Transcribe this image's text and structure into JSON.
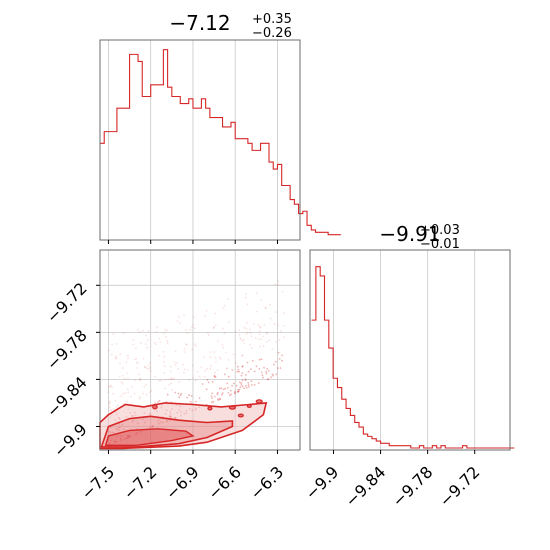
{
  "colors": {
    "accent": "#d62728",
    "fill_light": "#f4c2c2",
    "grid": "#c8c8c8",
    "frame": "#6b6b6b"
  },
  "titles": {
    "p1": {
      "main": "−7.12",
      "sup": "+0.35",
      "sub": "−0.26"
    },
    "p2": {
      "main": "−9.91",
      "sup": "+0.03",
      "sub": "−0.01"
    }
  },
  "chart_data": [
    {
      "type": "histogram",
      "panel": "marginal_x",
      "xlim": [
        -7.56,
        -6.14
      ],
      "x_ticks": [
        -7.5,
        -7.2,
        -6.9,
        -6.6,
        -6.3
      ],
      "grid": true,
      "bin_width": 0.03,
      "bin_start": -7.56,
      "counts": [
        40,
        45,
        45,
        45,
        55,
        55,
        55,
        78,
        78,
        75,
        60,
        60,
        65,
        65,
        65,
        80,
        64,
        60,
        60,
        57,
        57,
        59,
        55,
        55,
        59,
        55,
        51,
        51,
        51,
        47,
        47,
        49,
        42,
        42,
        42,
        40,
        37,
        37,
        40,
        40,
        32,
        29,
        31,
        22,
        22,
        16,
        14,
        10,
        11,
        5,
        3,
        2,
        2,
        2,
        1,
        1,
        1
      ]
    },
    {
      "type": "histogram",
      "panel": "marginal_y",
      "xlim": [
        -9.93,
        -9.675
      ],
      "x_ticks": [
        -9.9,
        -9.84,
        -9.78,
        -9.72
      ],
      "grid": true,
      "bin_width": 0.0055,
      "bin_start": -9.928,
      "counts": [
        55,
        78,
        74,
        55,
        43,
        30,
        26,
        21,
        17,
        14,
        11,
        9,
        6,
        5,
        4,
        3,
        2,
        2,
        1,
        1,
        1,
        1,
        1,
        0,
        0,
        1,
        0,
        0,
        1,
        0,
        1,
        0,
        0,
        0,
        0,
        1,
        0,
        0,
        0,
        0,
        0,
        0,
        0,
        0,
        0,
        0,
        0
      ]
    },
    {
      "type": "scatter",
      "panel": "joint",
      "xlim": [
        -7.56,
        -6.14
      ],
      "ylim": [
        -9.93,
        -9.675
      ],
      "x_ticks": [
        -7.5,
        -7.2,
        -6.9,
        -6.6,
        -6.3
      ],
      "y_ticks": [
        -9.72,
        -9.78,
        -9.84,
        -9.9
      ],
      "grid": true,
      "contour_fill_levels": 2,
      "contour_line_levels": 3
    }
  ]
}
